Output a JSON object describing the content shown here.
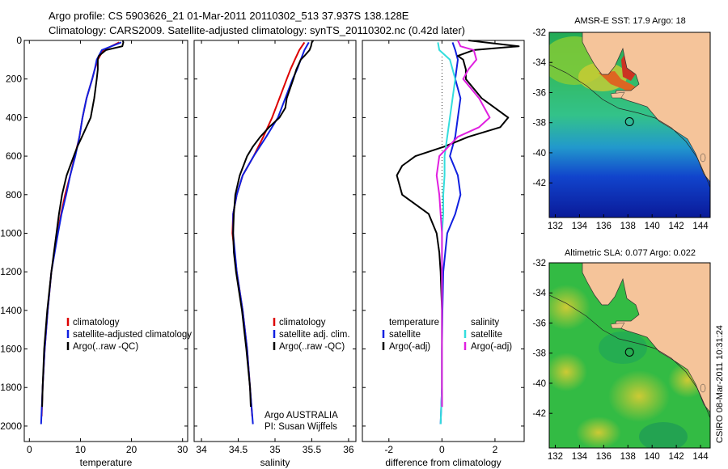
{
  "header": {
    "line1": "Argo profile: CS 5903626_21 01-Mar-2011 20110302_513 37.937S 138.128E",
    "line2": "Climatology: CARS2009. Satellite-adjusted climatology: synTS_20110302.nc (0.42d later)"
  },
  "side_label": "CSIRO 08-Mar-2011 10:31:24",
  "colors": {
    "red": "#dd0000",
    "blue": "#1020e0",
    "black": "#000000",
    "cyan": "#33dddd",
    "magenta": "#e020e0"
  },
  "chart_data": [
    {
      "type": "line",
      "xlabel": "temperature",
      "ylabel": "",
      "xlim": [
        -1,
        31
      ],
      "ylim": [
        2080,
        0
      ],
      "xticks": [
        0,
        10,
        20,
        30
      ],
      "yticks": [
        0,
        200,
        400,
        600,
        800,
        1000,
        1200,
        1400,
        1600,
        1800,
        2000
      ],
      "legend": [
        "climatology",
        "satellite-adjusted climatology",
        "Argo(..raw -QC)"
      ],
      "series": [
        {
          "name": "climatology",
          "color": "red",
          "depth": [
            10,
            50,
            100,
            150,
            200,
            300,
            400,
            500,
            600,
            700,
            800,
            900,
            1000,
            1200,
            1400,
            1600,
            1800,
            1950
          ],
          "values": [
            17.6,
            14.5,
            13.4,
            12.8,
            12.3,
            11.2,
            10.4,
            9.8,
            8.9,
            8.0,
            7.0,
            6.2,
            5.5,
            4.3,
            3.6,
            3.0,
            2.6,
            2.4
          ]
        },
        {
          "name": "satellite-adjusted climatology",
          "color": "blue",
          "depth": [
            10,
            50,
            100,
            150,
            200,
            300,
            400,
            500,
            600,
            700,
            800,
            900,
            1000,
            1200,
            1400,
            1600,
            1800,
            1990
          ],
          "values": [
            18.0,
            14.2,
            13.2,
            12.8,
            12.3,
            11.2,
            10.4,
            9.8,
            9.0,
            8.0,
            7.2,
            6.3,
            5.6,
            4.3,
            3.6,
            3.0,
            2.6,
            2.3
          ]
        },
        {
          "name": "Argo(..raw -QC)",
          "color": "black",
          "depth": [
            0,
            10,
            30,
            50,
            80,
            100,
            150,
            200,
            300,
            400,
            500,
            550,
            600,
            700,
            800,
            900,
            1000,
            1200,
            1400,
            1600,
            1800,
            1900
          ],
          "values": [
            18.3,
            18.4,
            18.2,
            15.0,
            13.6,
            13.4,
            13.4,
            13.2,
            12.7,
            12.0,
            10.3,
            9.4,
            8.7,
            7.3,
            6.4,
            5.8,
            5.3,
            4.3,
            3.5,
            2.9,
            2.6,
            2.5
          ]
        }
      ]
    },
    {
      "type": "line",
      "xlabel": "salinity",
      "xlim": [
        33.9,
        36.1
      ],
      "ylim": [
        2080,
        0
      ],
      "xticks": [
        34,
        34.5,
        35,
        35.5,
        36
      ],
      "legend": [
        "climatology",
        "satellite adj. clim.",
        "Argo(..raw -QC)"
      ],
      "annotation": [
        "Argo AUSTRALIA",
        "PI: Susan Wijffels"
      ],
      "series": [
        {
          "name": "climatology",
          "color": "red",
          "depth": [
            10,
            50,
            100,
            150,
            200,
            300,
            400,
            500,
            600,
            700,
            800,
            900,
            1000,
            1200,
            1400,
            1600,
            1800,
            1950
          ],
          "values": [
            35.4,
            35.33,
            35.27,
            35.21,
            35.16,
            35.06,
            34.96,
            34.84,
            34.71,
            34.56,
            34.48,
            34.43,
            34.42,
            34.48,
            34.56,
            34.62,
            34.66,
            34.69
          ]
        },
        {
          "name": "satellite adj. clim.",
          "color": "blue",
          "depth": [
            10,
            50,
            100,
            150,
            200,
            300,
            400,
            500,
            600,
            700,
            800,
            900,
            1000,
            1200,
            1400,
            1600,
            1800,
            1990
          ],
          "values": [
            35.46,
            35.4,
            35.35,
            35.3,
            35.24,
            35.14,
            35.04,
            34.88,
            34.71,
            34.56,
            34.48,
            34.43,
            34.43,
            34.48,
            34.56,
            34.62,
            34.66,
            34.7
          ]
        },
        {
          "name": "Argo(..raw -QC)",
          "color": "black",
          "depth": [
            0,
            10,
            30,
            50,
            80,
            100,
            150,
            200,
            300,
            350,
            400,
            450,
            500,
            550,
            600,
            700,
            800,
            900,
            1000,
            1100,
            1200,
            1400,
            1600,
            1800,
            1900
          ],
          "values": [
            35.52,
            35.5,
            35.49,
            35.47,
            35.4,
            35.35,
            35.29,
            35.25,
            35.16,
            35.14,
            35.06,
            34.92,
            34.8,
            34.7,
            34.62,
            34.52,
            34.46,
            34.44,
            34.43,
            34.44,
            34.47,
            34.55,
            34.61,
            34.66,
            34.67
          ]
        }
      ]
    },
    {
      "type": "line",
      "xlabel": "difference from climatology",
      "xlim": [
        -3,
        3.1
      ],
      "ylim": [
        2080,
        0
      ],
      "xticks": [
        -2,
        0,
        2
      ],
      "legend_temperature_title": "temperature",
      "legend_salinity_title": "salinity",
      "legend_temperature": [
        "satellite",
        "Argo(-adj)"
      ],
      "legend_salinity": [
        "satellite",
        "Argo(-adj)"
      ],
      "series": [
        {
          "name": "satellite",
          "group": "temperature",
          "color": "blue",
          "depth": [
            10,
            50,
            100,
            200,
            300,
            400,
            500,
            600,
            700,
            800,
            900,
            1000,
            1200,
            1400,
            1600,
            1800,
            1990
          ],
          "values": [
            0.4,
            0.5,
            0.6,
            0.5,
            0.7,
            0.6,
            0.5,
            0.3,
            0.6,
            0.7,
            0.5,
            0.2,
            0.05,
            0.02,
            0.0,
            0.0,
            -0.05
          ]
        },
        {
          "name": "Argo(-adj)",
          "group": "temperature",
          "color": "black",
          "depth": [
            0,
            30,
            50,
            80,
            100,
            150,
            200,
            300,
            400,
            450,
            500,
            550,
            600,
            650,
            700,
            800,
            900,
            1000,
            1100,
            1200,
            1400,
            1600,
            1800,
            1900
          ],
          "values": [
            1.0,
            2.9,
            1.2,
            0.6,
            0.8,
            0.9,
            0.9,
            1.5,
            2.5,
            2.2,
            1.0,
            0.1,
            -1.0,
            -1.5,
            -1.7,
            -1.5,
            -0.5,
            -0.2,
            -0.1,
            -0.05,
            0.0,
            0.0,
            0.0,
            0.0
          ]
        },
        {
          "name": "satellite",
          "group": "salinity",
          "color": "cyan",
          "depth": [
            10,
            50,
            100,
            200,
            300,
            400,
            500,
            600,
            700,
            800,
            900,
            1000,
            1200,
            1400,
            1600,
            1800,
            1990
          ],
          "values": [
            -0.15,
            -0.1,
            0.3,
            0.5,
            0.4,
            0.3,
            0.2,
            0.1,
            0.1,
            0.05,
            0.05,
            0.0,
            0.0,
            0.0,
            0.0,
            0.0,
            -0.05
          ]
        },
        {
          "name": "Argo(-adj)",
          "group": "salinity",
          "color": "magenta",
          "depth": [
            0,
            30,
            50,
            100,
            150,
            200,
            300,
            400,
            450,
            500,
            600,
            700,
            800,
            900,
            1000,
            1200,
            1400,
            1600,
            1800,
            1900
          ],
          "values": [
            0.6,
            0.7,
            1.2,
            1.3,
            1.0,
            0.8,
            1.4,
            1.8,
            1.4,
            0.6,
            -0.1,
            -0.2,
            -0.1,
            -0.05,
            0.0,
            0.0,
            0.0,
            0.0,
            0.0,
            0.0
          ]
        }
      ]
    },
    {
      "type": "heatmap",
      "title": "AMSR-E SST: 17.9 Argo: 18",
      "xticks": [
        132,
        134,
        136,
        138,
        140,
        142,
        144
      ],
      "yticks": [
        -32,
        -34,
        -36,
        -38,
        -40,
        -42
      ],
      "xlim": [
        131.5,
        144.8
      ],
      "ylim": [
        -44.3,
        -32
      ],
      "marker": {
        "lon": 138.128,
        "lat": -37.937
      }
    },
    {
      "type": "heatmap",
      "title": "Altimetric SLA: 0.077 Argo: 0.022",
      "xticks": [
        132,
        134,
        136,
        138,
        140,
        142,
        144
      ],
      "yticks": [
        -32,
        -34,
        -36,
        -38,
        -40,
        -42
      ],
      "xlim": [
        131.5,
        144.8
      ],
      "ylim": [
        -44.3,
        -32
      ],
      "marker": {
        "lon": 138.128,
        "lat": -37.937
      }
    }
  ]
}
